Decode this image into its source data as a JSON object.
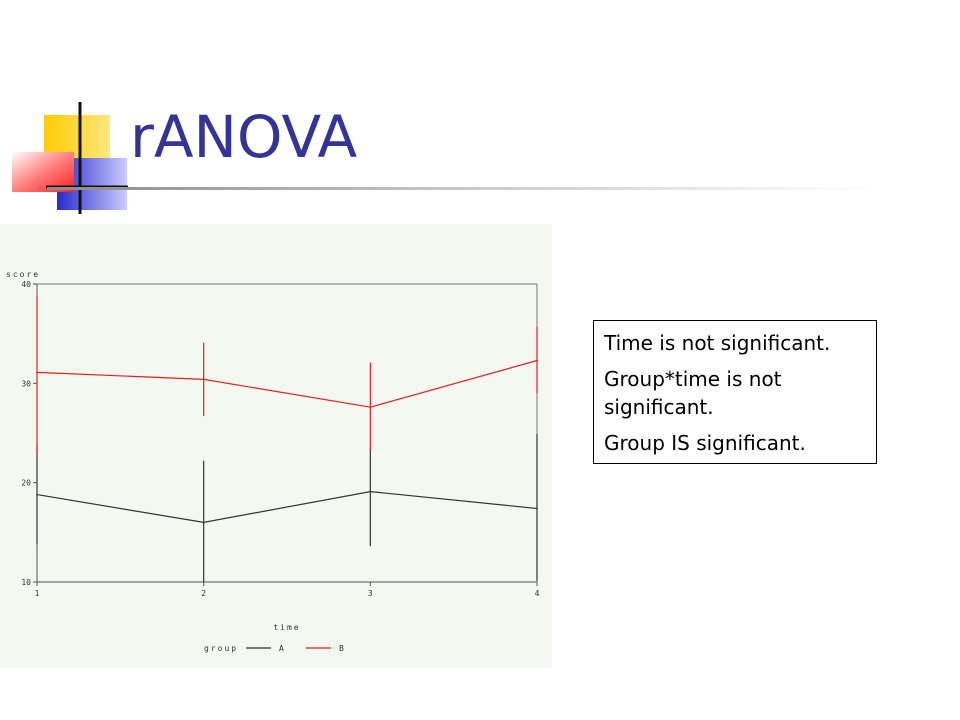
{
  "slide": {
    "title": "rANOVA",
    "notes": [
      "Time is not significant.",
      "Group*time is not significant.",
      "Group IS significant."
    ]
  },
  "colors": {
    "title": "#333399",
    "group_A": "#333333",
    "group_B": "#e02020",
    "logo_yellow": "#ffcc00",
    "logo_blue": "#3333cc",
    "logo_red": "#ff3333"
  },
  "chart_data": {
    "type": "line",
    "title": "",
    "xlabel": "time",
    "ylabel": "score",
    "x": [
      1,
      2,
      3,
      4
    ],
    "xticks": [
      "1",
      "2",
      "3",
      "4"
    ],
    "yticks": [
      "10",
      "20",
      "30",
      "40"
    ],
    "xlim": [
      1,
      4
    ],
    "ylim": [
      10,
      40
    ],
    "grid": false,
    "legend_title": "group",
    "legend_position": "bottom",
    "series": [
      {
        "name": "A",
        "values": [
          18.8,
          16.0,
          19.1,
          17.4
        ],
        "error_low": [
          13.8,
          10.0,
          13.6,
          10.1
        ],
        "error_high": [
          23.8,
          22.2,
          23.4,
          24.9
        ]
      },
      {
        "name": "B",
        "values": [
          31.1,
          30.4,
          27.6,
          32.3
        ],
        "error_low": [
          23.0,
          26.7,
          23.2,
          29.0
        ],
        "error_high": [
          38.8,
          34.1,
          32.1,
          35.7
        ]
      }
    ]
  }
}
